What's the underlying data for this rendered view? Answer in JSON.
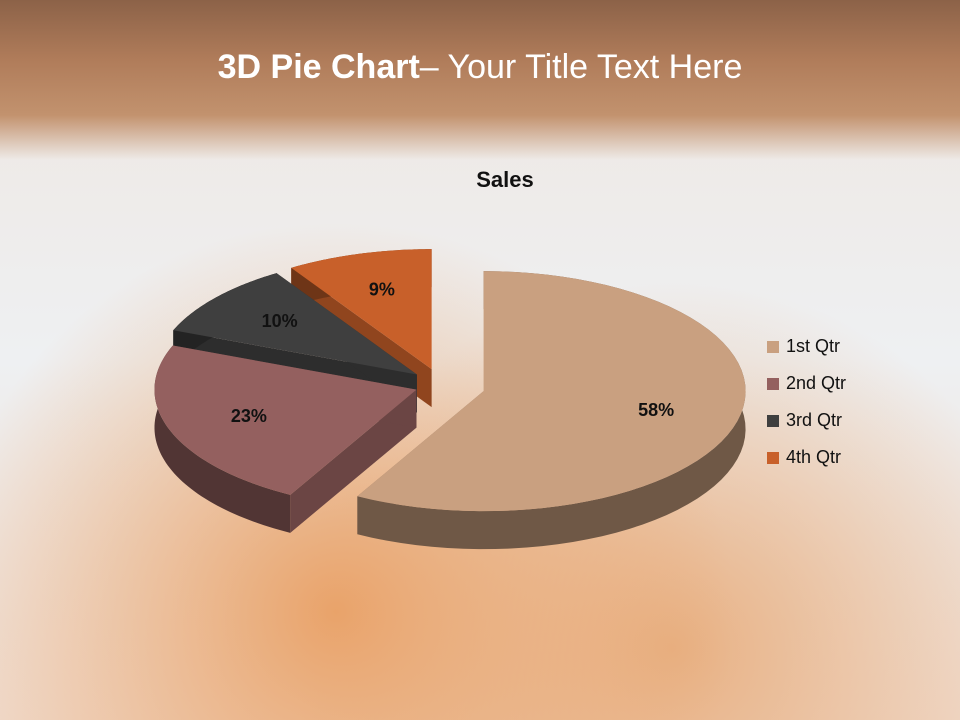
{
  "slide_title": [
    "3D Pie Chart",
    "– Your Title Text Here"
  ],
  "chart_data": {
    "type": "pie",
    "title": "Sales",
    "categories": [
      "1st Qtr",
      "2nd Qtr",
      "3rd Qtr",
      "4th Qtr"
    ],
    "values": [
      58,
      23,
      10,
      9
    ],
    "value_labels": [
      "58%",
      "23%",
      "10%",
      "9%"
    ],
    "colors": [
      "#c9a080",
      "#94605f",
      "#3f3f3f",
      "#c8602a"
    ],
    "legend": "right"
  }
}
